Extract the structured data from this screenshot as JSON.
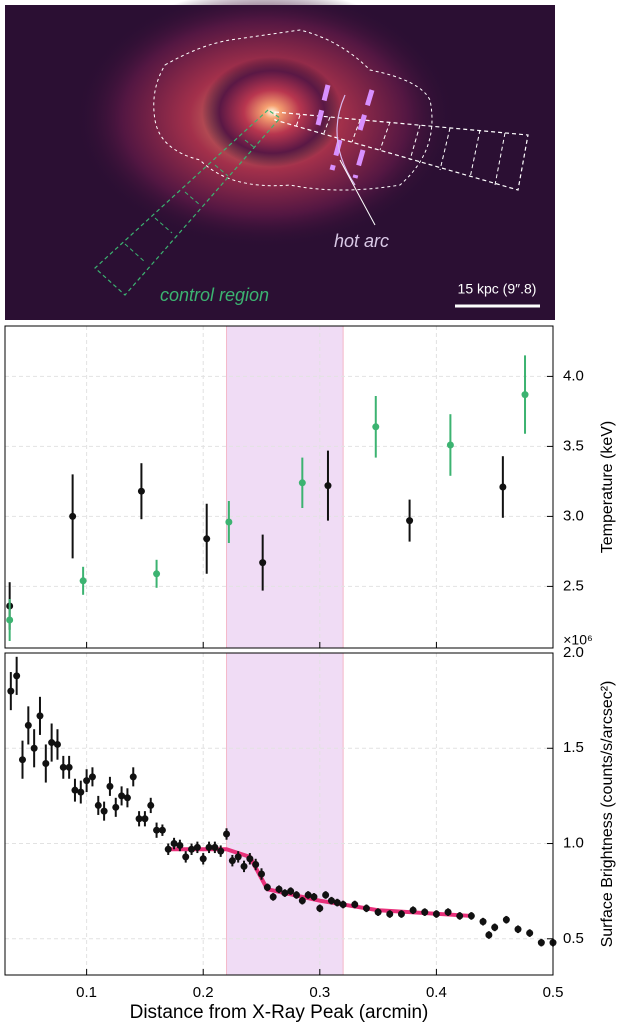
{
  "image": {
    "labels": [
      "hot arc",
      "control region",
      "15 kpc (9″.8)"
    ]
  },
  "chart_data": [
    {
      "type": "scatter",
      "y_label": "Temperature (keV)",
      "xlim": [
        0.03,
        0.5
      ],
      "xticks": [
        0.1,
        0.2,
        0.3,
        0.4,
        0.5
      ],
      "ylim": [
        2.06,
        4.36
      ],
      "yticks": [
        2.5,
        {
          "value": 3,
          "label": "3.0"
        },
        3.5,
        {
          "value": 4,
          "label": "4.0"
        }
      ],
      "grid": true,
      "shade": [
        0.22,
        0.32
      ],
      "shade_color": "#f0dcf5",
      "series": [
        {
          "color": "#111111",
          "x": [
            0.034,
            0.088,
            0.147,
            0.203,
            0.251,
            0.307,
            0.377,
            0.457
          ],
          "values": [
            2.36,
            3.0,
            3.18,
            2.84,
            2.67,
            3.22,
            2.97,
            3.21
          ],
          "errors": [
            0.17,
            0.3,
            0.2,
            0.25,
            0.2,
            0.25,
            0.15,
            0.22
          ]
        },
        {
          "color": "#3cb371",
          "x": [
            0.034,
            0.097,
            0.16,
            0.222,
            0.285,
            0.348,
            0.412,
            0.476
          ],
          "values": [
            2.26,
            2.54,
            2.59,
            2.96,
            3.24,
            3.64,
            3.51,
            3.87
          ],
          "errors": [
            0.15,
            0.1,
            0.1,
            0.15,
            0.18,
            0.22,
            0.22,
            0.28
          ]
        }
      ]
    },
    {
      "type": "scatter",
      "y_label": "Surface Brightness (counts/s/arcsec²)",
      "y_multiplier": "×10⁶",
      "x_label": "Distance from X-Ray Peak (arcmin)",
      "xlim": [
        0.03,
        0.5
      ],
      "xticks": [
        0.1,
        0.2,
        0.3,
        0.4,
        0.5
      ],
      "ylim": [
        0.31,
        2.0
      ],
      "yticks": [
        0.5,
        {
          "value": 1,
          "label": "1.0"
        },
        1.5,
        {
          "value": 2,
          "label": "2.0"
        }
      ],
      "grid": true,
      "shade": [
        0.22,
        0.32
      ],
      "shade_color": "#f0dcf5",
      "series": [
        {
          "color": "#111111",
          "x": [
            0.035,
            0.04,
            0.045,
            0.05,
            0.055,
            0.06,
            0.065,
            0.07,
            0.075,
            0.08,
            0.085,
            0.09,
            0.095,
            0.1,
            0.105,
            0.11,
            0.115,
            0.12,
            0.125,
            0.13,
            0.135,
            0.14,
            0.145,
            0.15,
            0.155,
            0.16,
            0.165,
            0.17,
            0.175,
            0.18,
            0.185,
            0.19,
            0.195,
            0.2,
            0.205,
            0.21,
            0.215,
            0.22,
            0.225,
            0.23,
            0.235,
            0.24,
            0.245,
            0.25,
            0.255,
            0.26,
            0.265,
            0.27,
            0.275,
            0.28,
            0.285,
            0.29,
            0.295,
            0.3,
            0.305,
            0.31,
            0.315,
            0.32,
            0.33,
            0.34,
            0.35,
            0.36,
            0.37,
            0.38,
            0.39,
            0.4,
            0.41,
            0.42,
            0.43,
            0.44,
            0.445,
            0.45,
            0.46,
            0.47,
            0.48,
            0.49,
            0.5
          ],
          "values": [
            1.8,
            1.88,
            1.44,
            1.62,
            1.5,
            1.67,
            1.42,
            1.53,
            1.52,
            1.4,
            1.4,
            1.28,
            1.27,
            1.33,
            1.35,
            1.2,
            1.17,
            1.3,
            1.19,
            1.25,
            1.24,
            1.35,
            1.13,
            1.13,
            1.2,
            1.07,
            1.07,
            0.97,
            1.0,
            0.99,
            0.93,
            0.97,
            0.98,
            0.92,
            0.98,
            0.98,
            0.96,
            1.05,
            0.91,
            0.93,
            0.88,
            0.92,
            0.89,
            0.84,
            0.77,
            0.72,
            0.76,
            0.74,
            0.75,
            0.73,
            0.7,
            0.73,
            0.72,
            0.66,
            0.73,
            0.7,
            0.69,
            0.68,
            0.68,
            0.66,
            0.64,
            0.63,
            0.63,
            0.65,
            0.64,
            0.63,
            0.64,
            0.62,
            0.62,
            0.59,
            0.52,
            0.56,
            0.6,
            0.55,
            0.53,
            0.48,
            0.48
          ],
          "errors": [
            0.1,
            0.1,
            0.1,
            0.1,
            0.1,
            0.1,
            0.1,
            0.1,
            0.08,
            0.06,
            0.06,
            0.06,
            0.06,
            0.06,
            0.05,
            0.05,
            0.05,
            0.05,
            0.05,
            0.05,
            0.05,
            0.05,
            0.04,
            0.04,
            0.04,
            0.04,
            0.03,
            0.03,
            0.03,
            0.03,
            0.03,
            0.03,
            0.03,
            0.03,
            0.03,
            0.03,
            0.03,
            0.03,
            0.03,
            0.03,
            0.03,
            0.03,
            0.03,
            0.03,
            0.02,
            0.02,
            0.02,
            0.02,
            0.02,
            0.02,
            0.02,
            0.02,
            0.02,
            0.02,
            0.02,
            0.02,
            0.02,
            0.02,
            0.02,
            0.02,
            0.02,
            0.02,
            0.02,
            0.02,
            0.02,
            0.02,
            0.02,
            0.02,
            0.02,
            0.02,
            0.02,
            0.02,
            0.02,
            0.02,
            0.02,
            0.02,
            0.02
          ]
        }
      ],
      "fit": {
        "color": "#e8307a",
        "x": [
          0.17,
          0.22,
          0.24,
          0.255,
          0.27,
          0.3,
          0.35,
          0.43
        ],
        "values": [
          0.97,
          0.97,
          0.93,
          0.76,
          0.74,
          0.7,
          0.65,
          0.62
        ]
      }
    }
  ]
}
